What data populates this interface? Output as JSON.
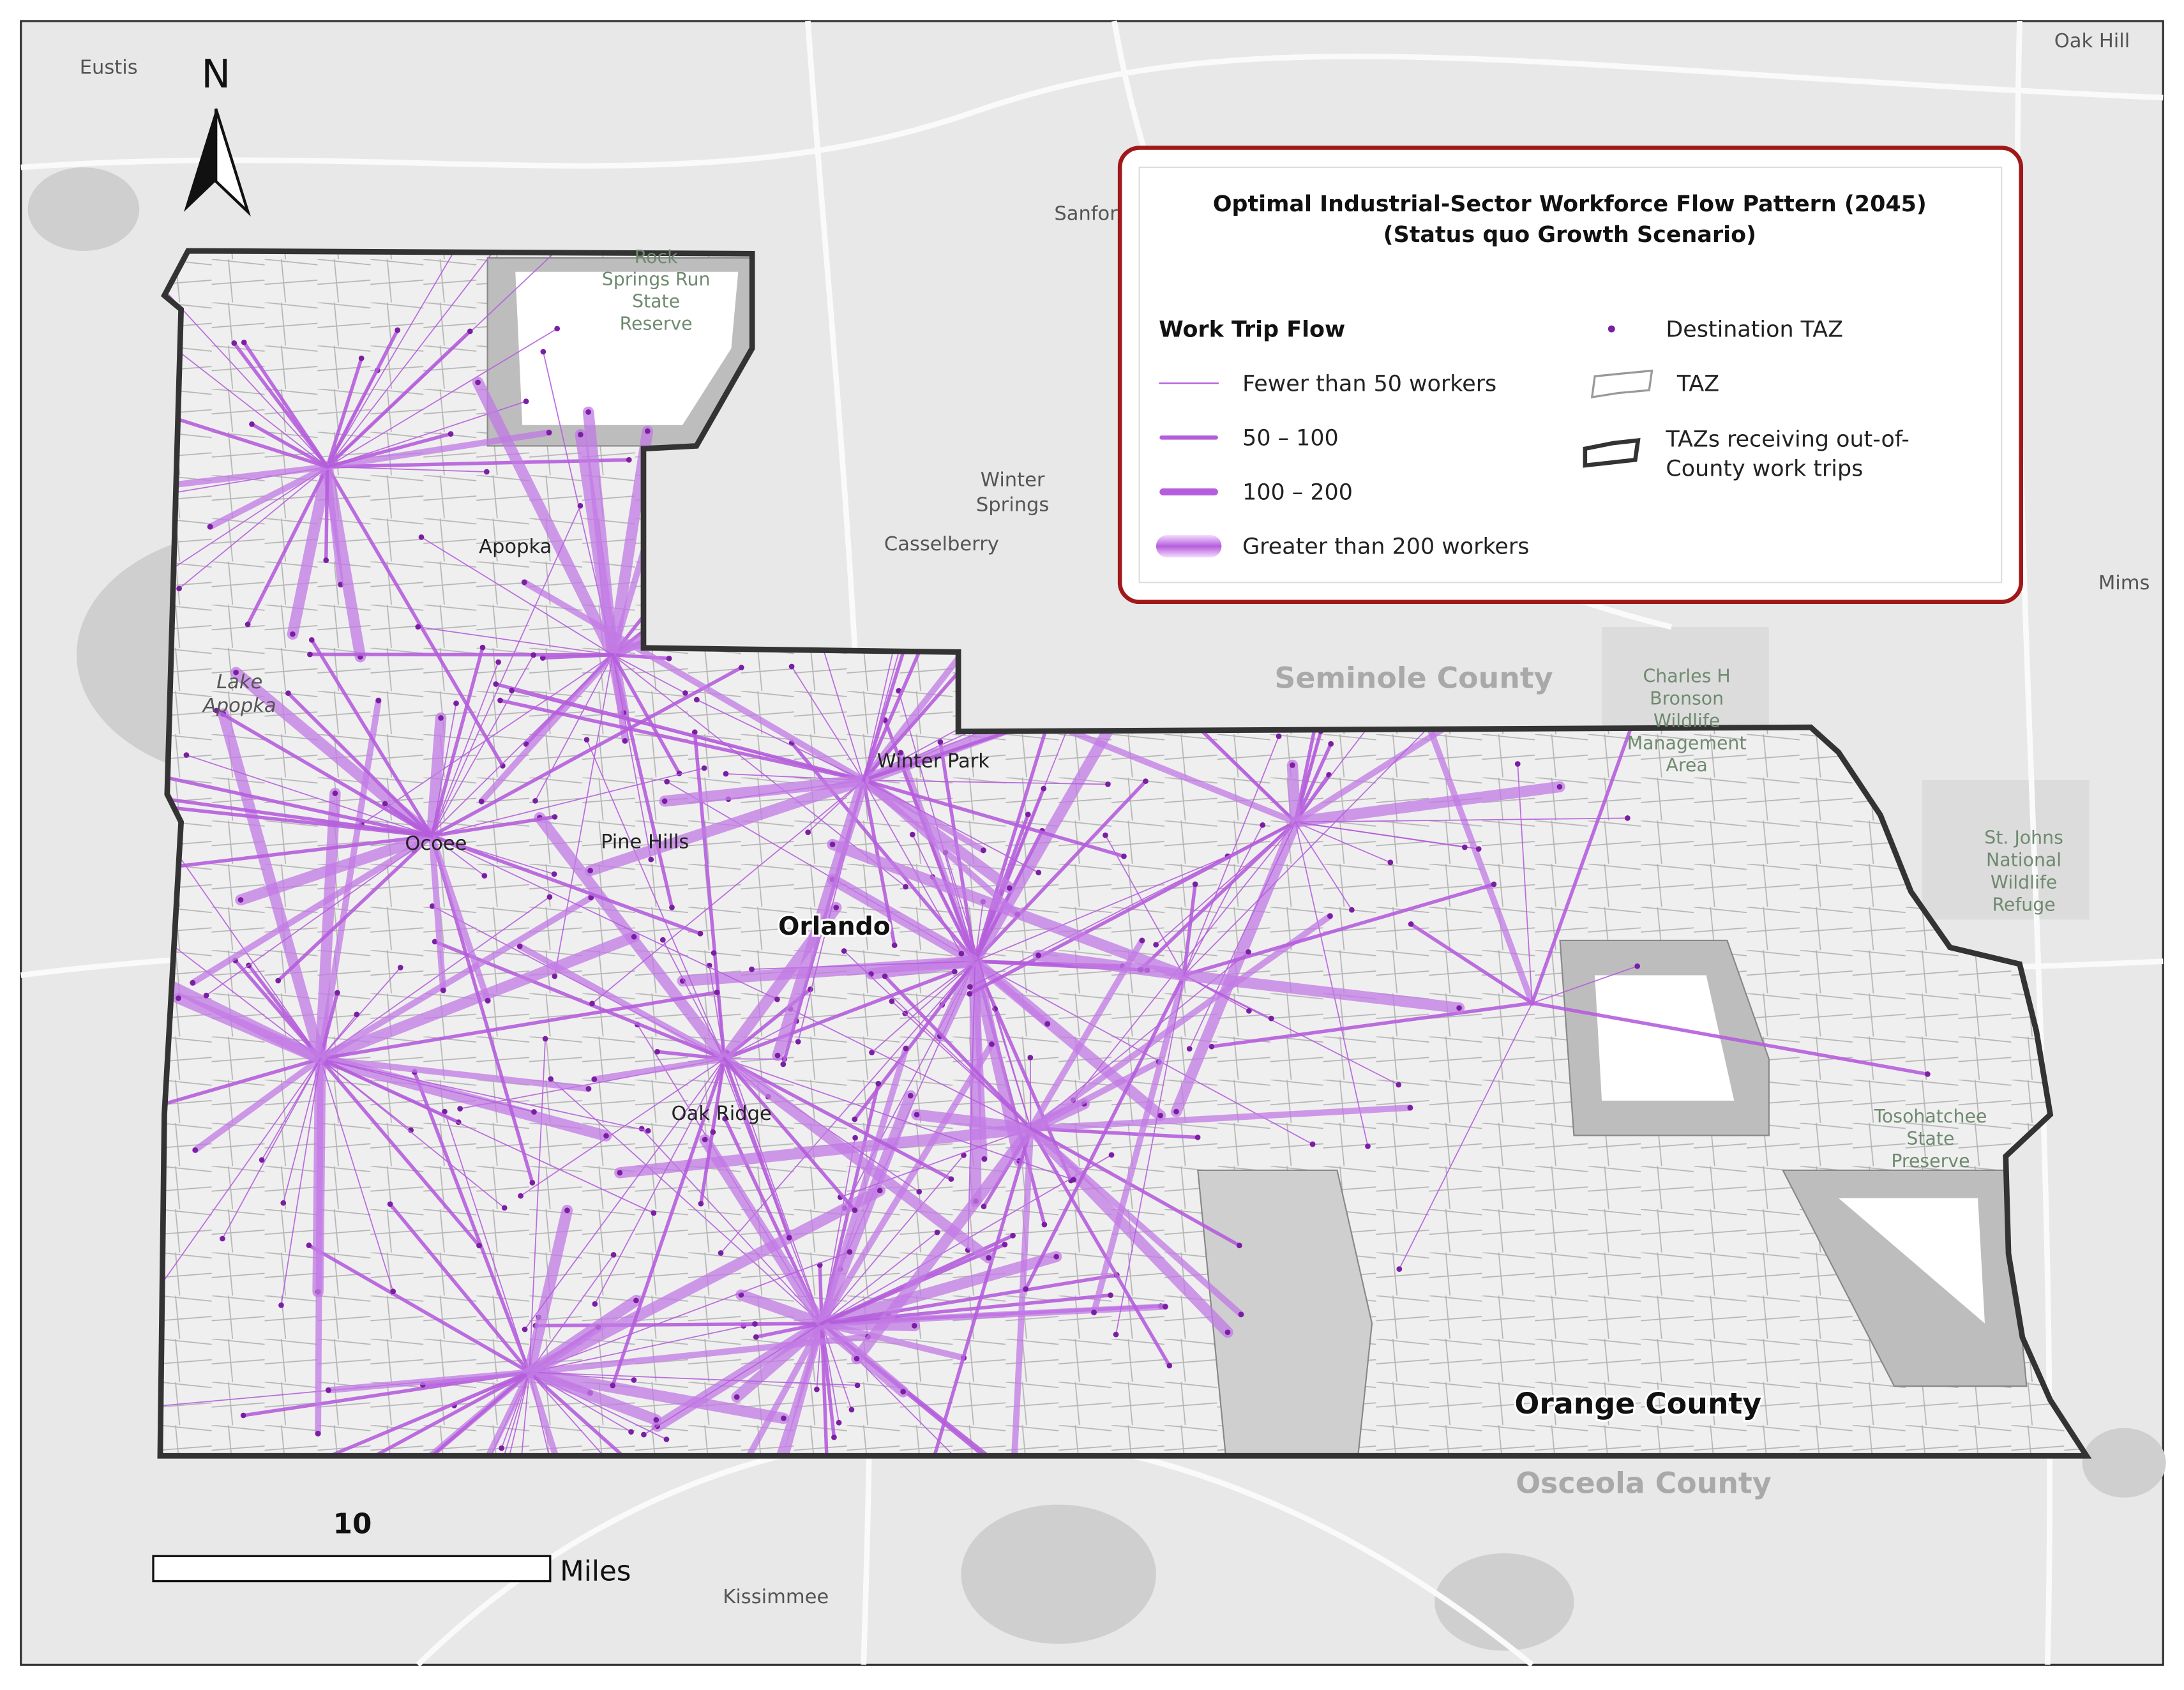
{
  "map": {
    "title": "Optimal Industrial-Sector Workforce Flow Pattern (2045)",
    "subtitle": "(Status quo Growth Scenario)",
    "north": "N"
  },
  "legend": {
    "heading": "Work Trip Flow",
    "flows": [
      "Fewer than 50 workers",
      "50 – 100",
      "100 – 200",
      "Greater than 200 workers"
    ],
    "destination": "Destination TAZ",
    "taz": "TAZ",
    "receiving": [
      "TAZs receiving out-of-",
      "County work trips"
    ]
  },
  "places": [
    [
      "Eustis"
    ],
    [
      "Oak Hill"
    ],
    [
      "Sanford"
    ],
    [
      "Rock",
      "Springs Run",
      "State",
      "Reserve"
    ],
    [
      "Winter",
      "Springs"
    ],
    [
      "Casselberry"
    ],
    [
      "Apopka"
    ],
    [
      "Lake",
      "Apopka"
    ],
    [
      "Seminole County"
    ],
    [
      "Charles H",
      "Bronson",
      "Wildlife",
      "Management",
      "Area"
    ],
    [
      "Winter Park"
    ],
    [
      "Ocoee"
    ],
    [
      "Pine Hills"
    ],
    [
      "Orlando"
    ],
    [
      "Mims"
    ],
    [
      "St. Johns",
      "National",
      "Wildlife",
      "Refuge"
    ],
    [
      "Oak Ridge"
    ],
    [
      "Tosohatchee",
      "State",
      "Preserve"
    ],
    [
      "Orange County"
    ],
    [
      "Osceola County"
    ],
    [
      "Kissimmee"
    ]
  ],
  "scale_bar": {
    "distance": "10",
    "unit": "Miles"
  }
}
